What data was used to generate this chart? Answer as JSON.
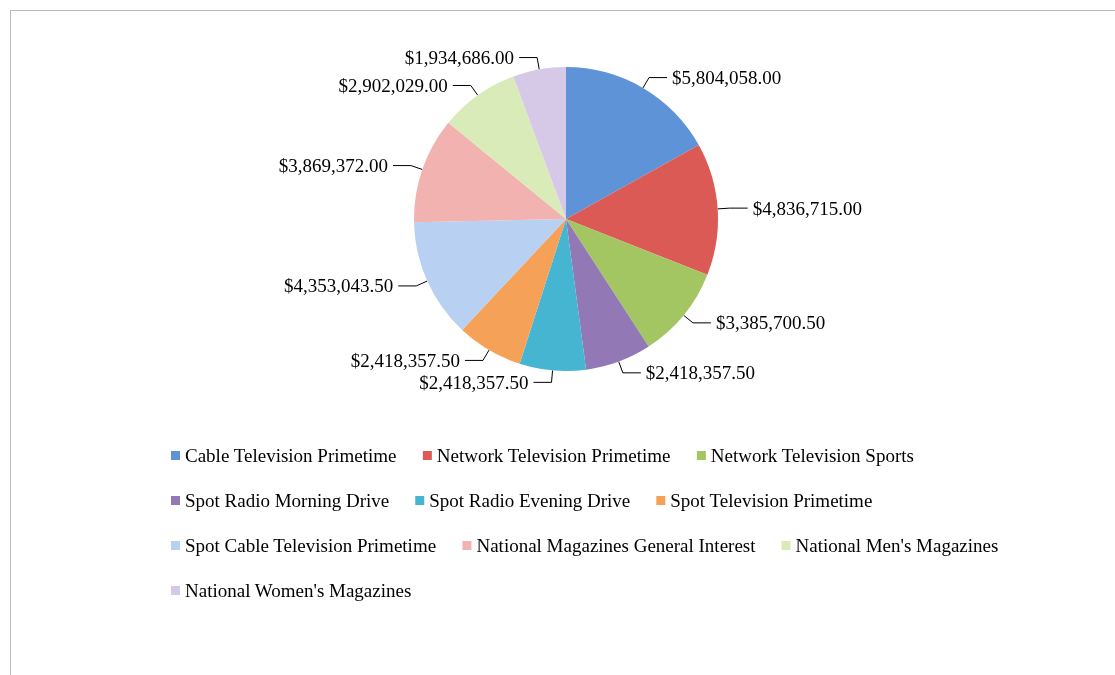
{
  "chart_data": {
    "type": "pie",
    "categories": [
      "Cable Television Primetime",
      "Network Television Primetime",
      "Network Television Sports",
      "Spot Radio Morning Drive",
      "Spot Radio Evening Drive",
      "Spot Television Primetime",
      "Spot Cable Television Primetime",
      "National Magazines General Interest",
      "National Men's Magazines",
      "National Women's Magazines"
    ],
    "values": [
      5804058,
      4836715,
      3385700.5,
      2418357.5,
      2418357.5,
      2418357.5,
      4353043.5,
      3869372,
      2902029,
      1934686
    ],
    "value_labels": [
      "$5,804,058.00",
      "$4,836,715.00",
      "$3,385,700.50",
      "$2,418,357.50",
      "$2,418,357.50",
      "$2,418,357.50",
      "$4,353,043.50",
      "$3,869,372.00",
      "$2,902,029.00",
      "$1,934,686.00"
    ],
    "colors": [
      "#5f93d8",
      "#dc5a55",
      "#a3c663",
      "#9279b6",
      "#45b5d2",
      "#f5a258",
      "#b8d0f2",
      "#f2b3b0",
      "#d9ebb8",
      "#d6c9e8"
    ],
    "legend": "bottom"
  }
}
